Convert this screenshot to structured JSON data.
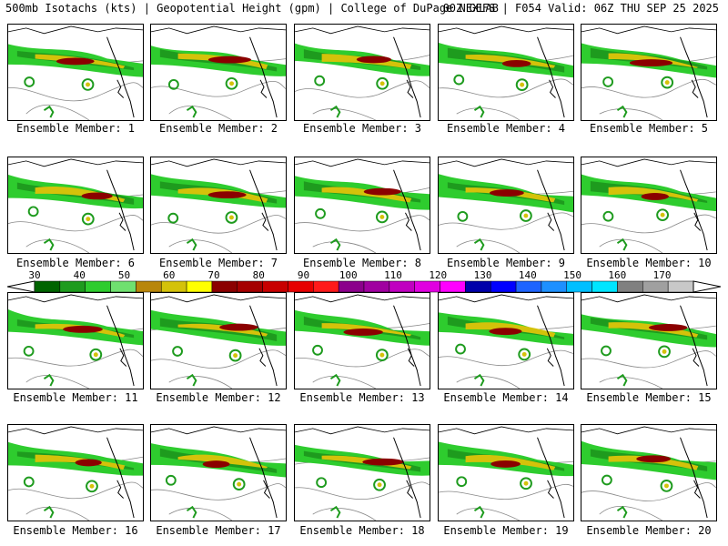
{
  "header": {
    "left": "500mb Isotachs (kts) | Geopotential Height (gpm) | College of DuPage NEXLAB",
    "right": "00Z GEFS | F054 Valid: 06Z THU SEP 25 2025"
  },
  "colorbar": {
    "ticks": [
      "30",
      "40",
      "50",
      "60",
      "70",
      "80",
      "90",
      "100",
      "110",
      "120",
      "130",
      "140",
      "150",
      "160",
      "170"
    ],
    "colors": [
      "#006400",
      "#1e9b1e",
      "#2ecc2e",
      "#6fe06f",
      "#b8860b",
      "#d4c20a",
      "#ffff00",
      "#8b0000",
      "#a50000",
      "#c80000",
      "#e60000",
      "#ff1a1a",
      "#8b008b",
      "#a000a0",
      "#c000c0",
      "#e000e0",
      "#ff00ff",
      "#0000aa",
      "#0000ff",
      "#1e64ff",
      "#1e90ff",
      "#00bfff",
      "#00e5ff",
      "#808080",
      "#a0a0a0",
      "#c8c8c8"
    ]
  },
  "members": [
    "Ensemble Member: 1",
    "Ensemble Member: 2",
    "Ensemble Member: 3",
    "Ensemble Member: 4",
    "Ensemble Member: 5",
    "Ensemble Member: 6",
    "Ensemble Member: 7",
    "Ensemble Member: 8",
    "Ensemble Member: 9",
    "Ensemble Member: 10",
    "Ensemble Member: 11",
    "Ensemble Member: 12",
    "Ensemble Member: 13",
    "Ensemble Member: 14",
    "Ensemble Member: 15",
    "Ensemble Member: 16",
    "Ensemble Member: 17",
    "Ensemble Member: 18",
    "Ensemble Member: 19",
    "Ensemble Member: 20"
  ]
}
